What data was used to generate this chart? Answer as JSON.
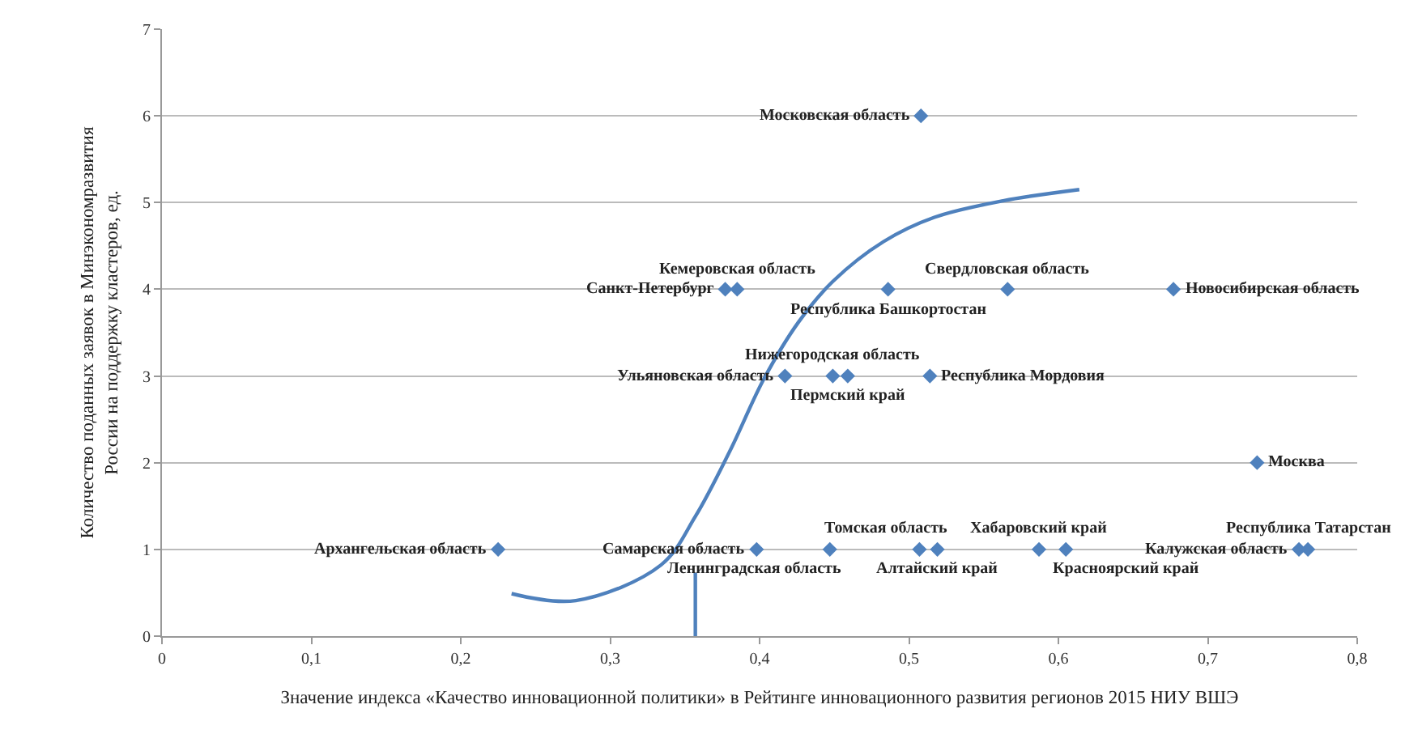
{
  "chart_data": {
    "type": "scatter",
    "xlabel": "Значение индекса «Качество инновационной политики» в Рейтинге инновационного развития регионов 2015 НИУ ВШЭ",
    "ylabel": "Количество поданных заявок в Минэкономразвития России на поддержку кластеров, ед.",
    "series": [
      {
        "color": "#4f81bd",
        "marker": "diamond",
        "x": [
          0.508,
          0.377,
          0.385,
          0.486,
          0.566,
          0.677,
          0.417,
          0.449,
          0.459,
          0.514,
          0.733,
          0.225,
          0.398,
          0.447,
          0.507,
          0.519,
          0.587,
          0.605,
          0.761,
          0.767
        ],
        "values": [
          6,
          4,
          4,
          4,
          4,
          4,
          3,
          3,
          3,
          3,
          2,
          1,
          1,
          1,
          1,
          1,
          1,
          1,
          1,
          1
        ]
      },
      {
        "type": "line",
        "color": "#4f81bd",
        "marker": "none",
        "x": [
          0.234,
          0.277,
          0.334,
          0.357,
          0.38,
          0.403,
          0.426,
          0.449,
          0.483,
          0.517,
          0.563,
          0.614
        ],
        "values": [
          0.49,
          0.41,
          0.82,
          1.38,
          2.13,
          2.97,
          3.62,
          4.09,
          4.55,
          4.83,
          5.02,
          5.15
        ]
      },
      {
        "type": "line",
        "color": "#4f81bd",
        "marker": "none",
        "x": [
          0.357,
          0.357
        ],
        "values": [
          0,
          0.73
        ]
      }
    ],
    "annotations": [
      {
        "text": "Московская область",
        "x": 0.508,
        "y": 6
      },
      {
        "text": "Санкт-Петербург",
        "x": 0.377,
        "y": 4
      },
      {
        "text": "Кемеровская область",
        "x": 0.385,
        "y": 4
      },
      {
        "text": "Республика Башкортостан",
        "x": 0.486,
        "y": 4
      },
      {
        "text": "Свердловская область",
        "x": 0.566,
        "y": 4
      },
      {
        "text": "Новосибирская область",
        "x": 0.677,
        "y": 4
      },
      {
        "text": "Ульяновская область",
        "x": 0.417,
        "y": 3
      },
      {
        "text": "Нижегородская область",
        "x": 0.449,
        "y": 3
      },
      {
        "text": "Пермский край",
        "x": 0.459,
        "y": 3
      },
      {
        "text": "Республика Мордовия",
        "x": 0.514,
        "y": 3
      },
      {
        "text": "Москва",
        "x": 0.733,
        "y": 2
      },
      {
        "text": "Архангельская область",
        "x": 0.225,
        "y": 1
      },
      {
        "text": "Самарская область",
        "x": 0.398,
        "y": 1
      },
      {
        "text": "Ленинградская область",
        "x": 0.447,
        "y": 1
      },
      {
        "text": "Томская область",
        "x": 0.507,
        "y": 1
      },
      {
        "text": "Алтайский край",
        "x": 0.519,
        "y": 1
      },
      {
        "text": "Хабаровский край",
        "x": 0.587,
        "y": 1
      },
      {
        "text": "Красноярский край",
        "x": 0.605,
        "y": 1
      },
      {
        "text": "Калужская область",
        "x": 0.761,
        "y": 1
      },
      {
        "text": "Республика Татарстан",
        "x": 0.767,
        "y": 1
      }
    ],
    "xlim": [
      0,
      0.8
    ],
    "xticks": [
      0,
      {
        "value": 0.1,
        "label": "0,1"
      },
      {
        "value": 0.2,
        "label": "0,2"
      },
      {
        "value": 0.3,
        "label": "0,3"
      },
      {
        "value": 0.4,
        "label": "0,4"
      },
      {
        "value": 0.5,
        "label": "0,5"
      },
      {
        "value": 0.6,
        "label": "0,6"
      },
      {
        "value": 0.7,
        "label": "0,7"
      },
      {
        "value": 0.8,
        "label": "0,8"
      }
    ],
    "ylim": [
      0,
      7
    ],
    "yticks": [
      0,
      1,
      2,
      3,
      4,
      5,
      6,
      7
    ],
    "grid": "y"
  }
}
